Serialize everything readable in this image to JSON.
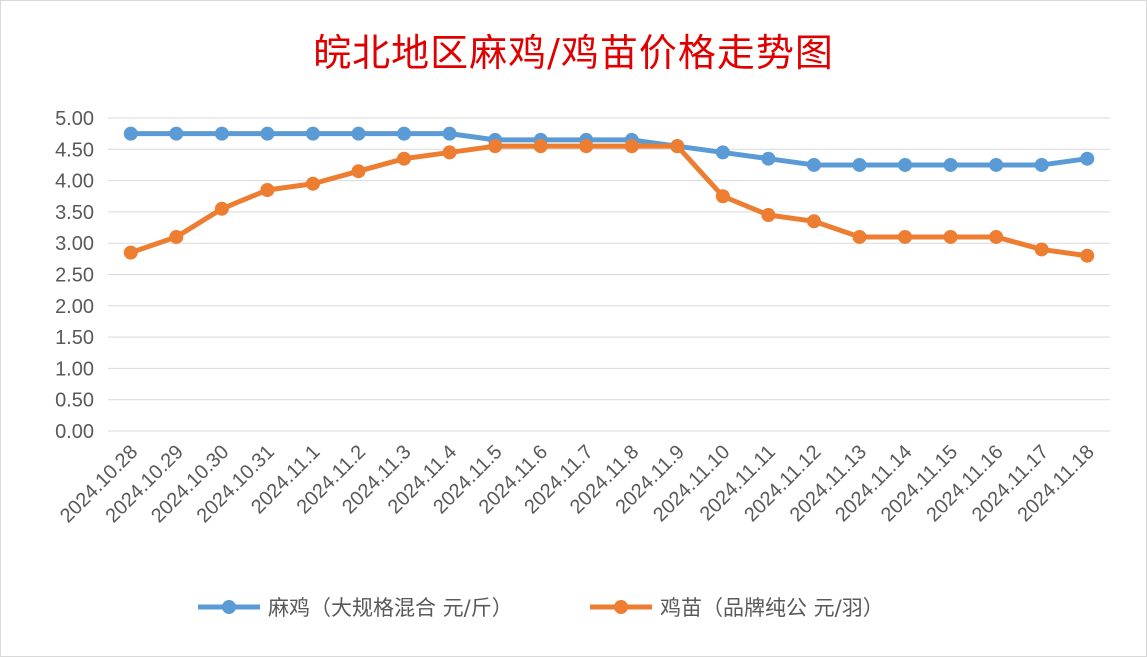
{
  "chart_data": {
    "type": "line",
    "title": "皖北地区麻鸡/鸡苗价格走势图",
    "categories": [
      "2024.10.28",
      "2024.10.29",
      "2024.10.30",
      "2024.10.31",
      "2024.11.1",
      "2024.11.2",
      "2024.11.3",
      "2024.11.4",
      "2024.11.5",
      "2024.11.6",
      "2024.11.7",
      "2024.11.8",
      "2024.11.9",
      "2024.11.10",
      "2024.11.11",
      "2024.11.12",
      "2024.11.13",
      "2024.11.14",
      "2024.11.15",
      "2024.11.16",
      "2024.11.17",
      "2024.11.18"
    ],
    "series": [
      {
        "name": "麻鸡（大规格混合 元/斤）",
        "color": "#5b9bd5",
        "values": [
          4.75,
          4.75,
          4.75,
          4.75,
          4.75,
          4.75,
          4.75,
          4.75,
          4.65,
          4.65,
          4.65,
          4.65,
          4.55,
          4.45,
          4.35,
          4.25,
          4.25,
          4.25,
          4.25,
          4.25,
          4.25,
          4.35
        ]
      },
      {
        "name": "鸡苗（品牌纯公 元/羽）",
        "color": "#ed7d31",
        "values": [
          2.85,
          3.1,
          3.55,
          3.85,
          3.95,
          4.15,
          4.35,
          4.45,
          4.55,
          4.55,
          4.55,
          4.55,
          4.55,
          3.75,
          3.45,
          3.35,
          3.1,
          3.1,
          3.1,
          3.1,
          2.9,
          2.8
        ]
      }
    ],
    "yticks": [
      "0.00",
      "0.50",
      "1.00",
      "1.50",
      "2.00",
      "2.50",
      "3.00",
      "3.50",
      "4.00",
      "4.50",
      "5.00"
    ],
    "ylim": [
      0,
      5
    ],
    "grid": true,
    "legend_position": "bottom"
  }
}
